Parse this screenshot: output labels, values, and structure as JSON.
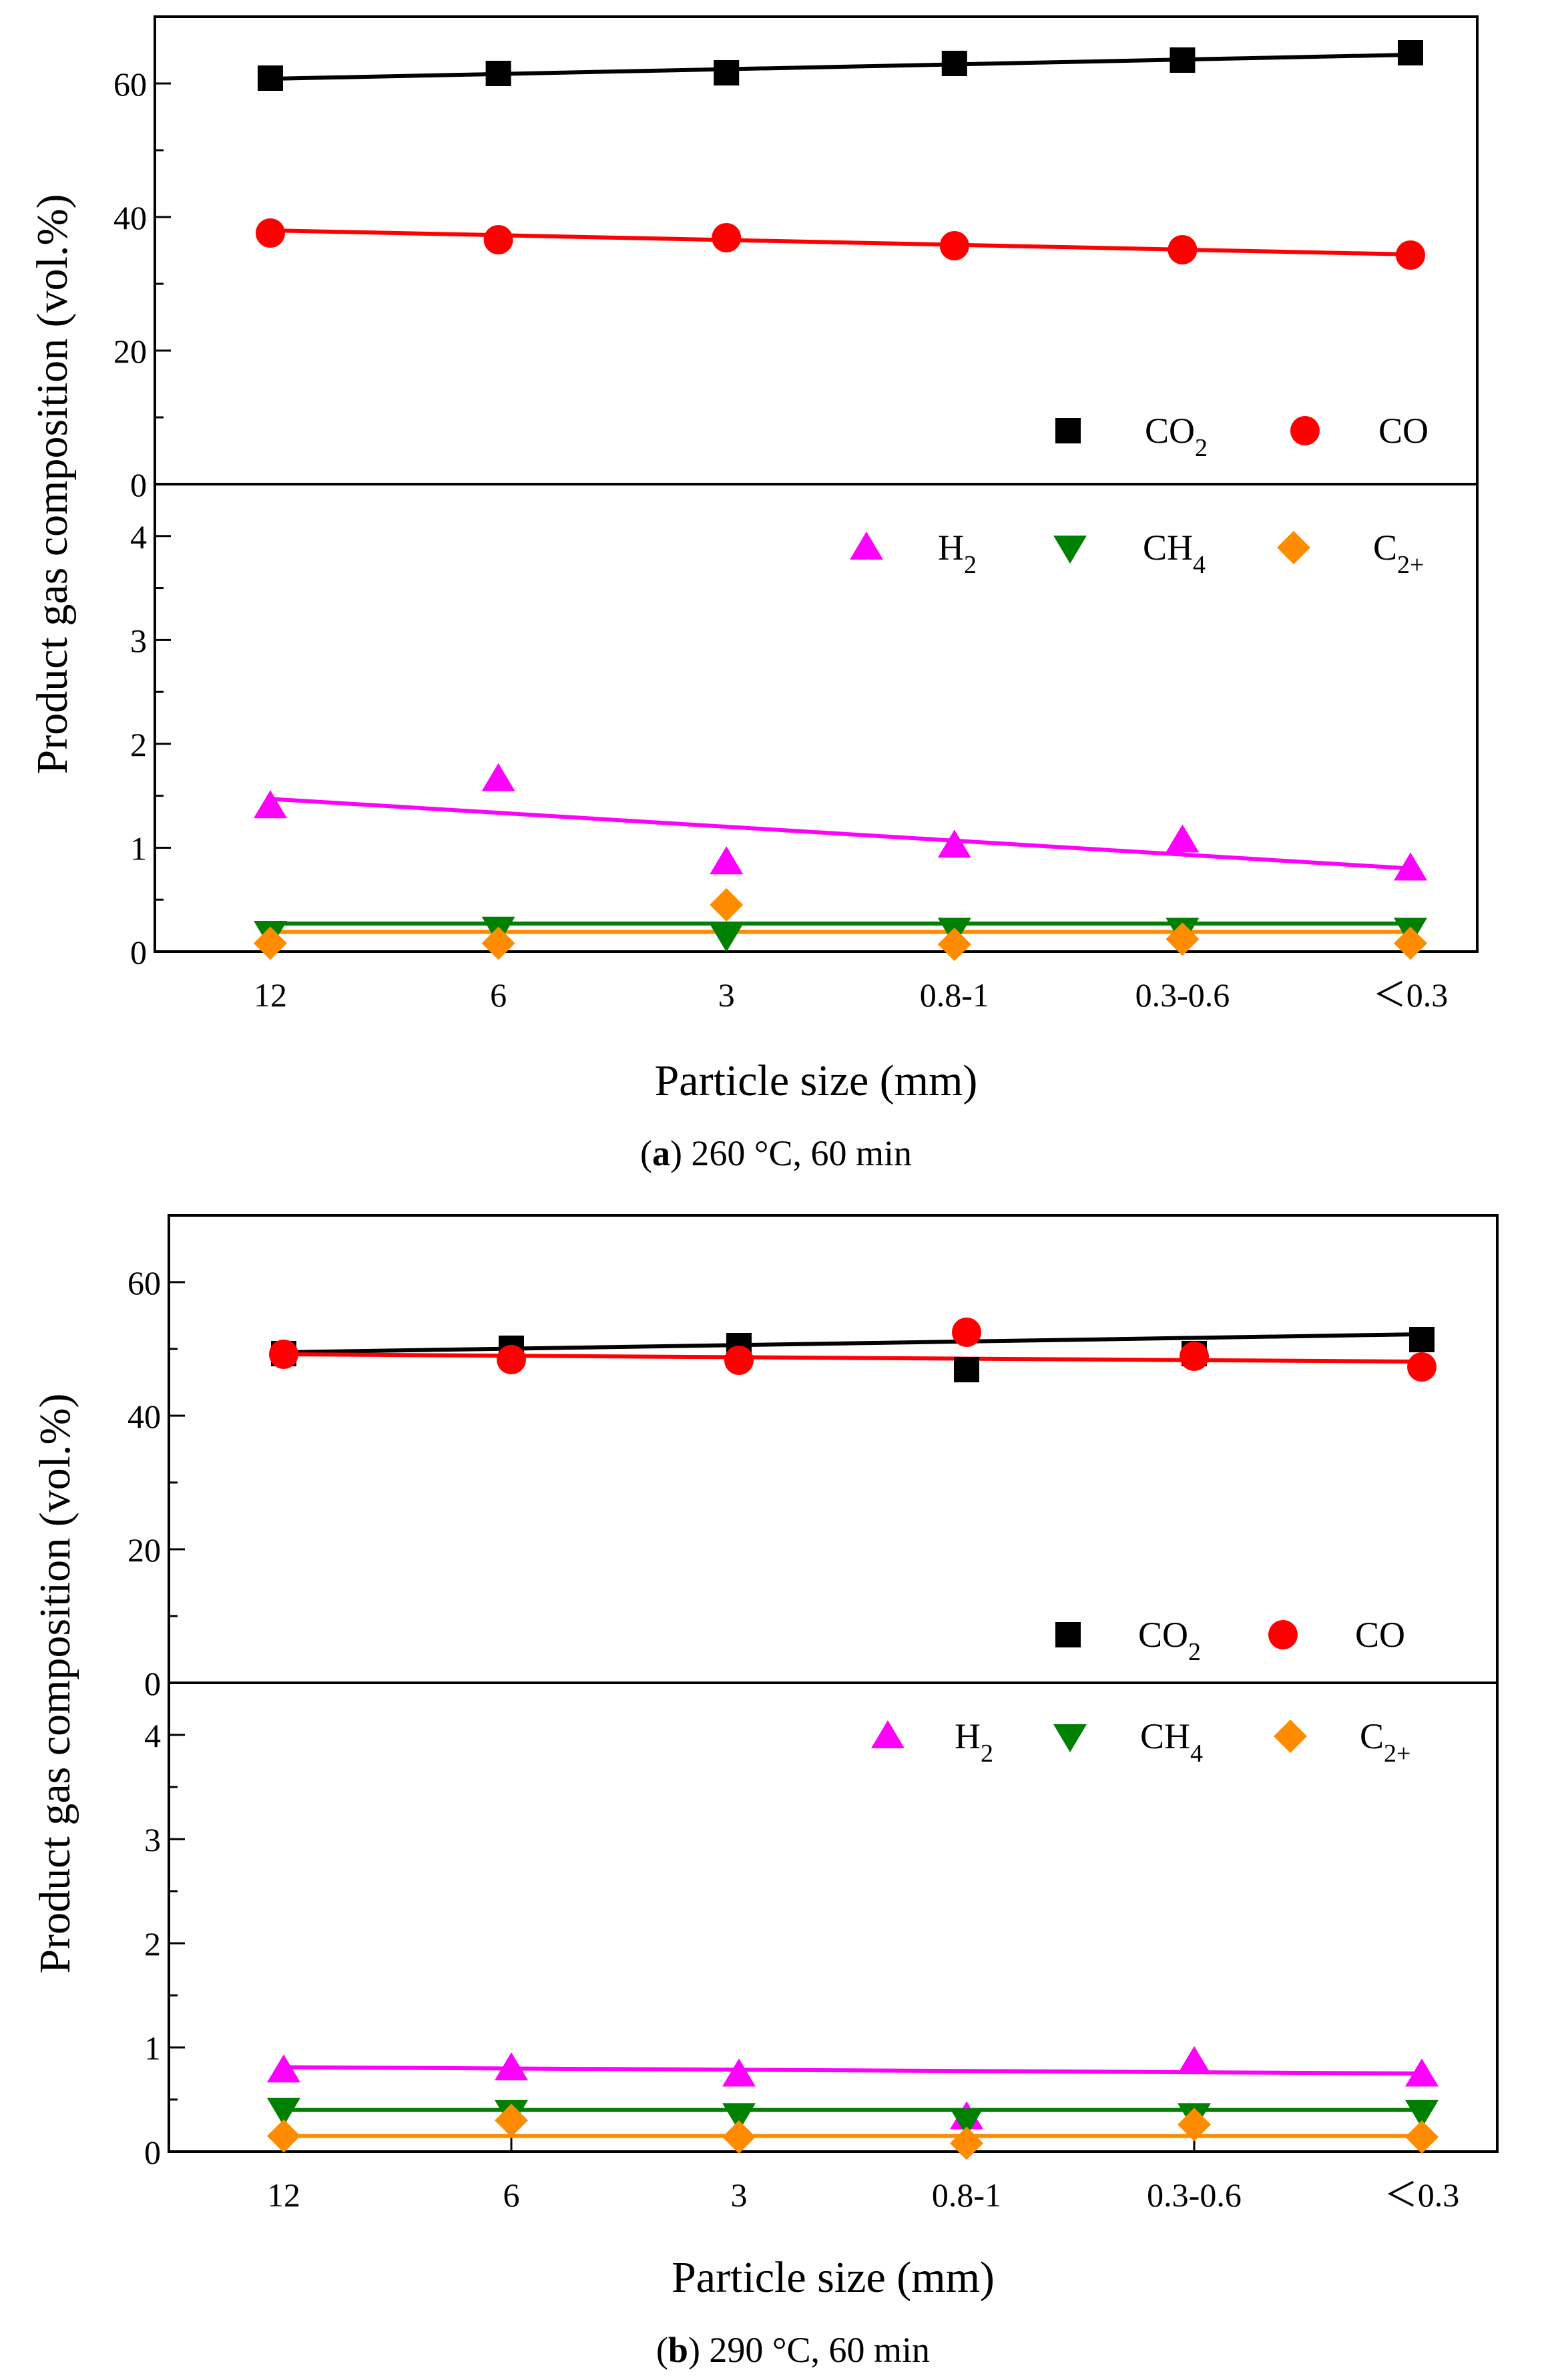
{
  "figure_caption_parts": [
    {
      "open": "(",
      "letter": "a",
      "rest": ") 260 °C, 60 min"
    },
    {
      "open": "(",
      "letter": "b",
      "rest": ") 290 °C, 60 min"
    }
  ],
  "chart_data": [
    {
      "type": "scatter",
      "panel": "a",
      "subtitle": "(a) 260 °C, 60 min",
      "xlabel": "Particle size (mm)",
      "ylabel": "Product gas composition (vol.%)",
      "categories": [
        "12",
        "6",
        "3",
        "0.8-1",
        "0.3-0.6",
        "＜0.3"
      ],
      "upper": {
        "ylim": [
          0,
          70
        ],
        "yticks": [
          "0",
          "20",
          "40",
          "60"
        ],
        "series": [
          {
            "name": "CO2",
            "label_base": "CO",
            "label_sub": "2",
            "marker": "square",
            "color": "#000000",
            "values": [
              60.8,
              61.5,
              61.6,
              63.0,
              63.5,
              64.6
            ],
            "fit": [
              60.7,
              64.3
            ]
          },
          {
            "name": "CO",
            "label_base": "CO",
            "label_sub": "",
            "marker": "circle",
            "color": "#ff0000",
            "values": [
              37.6,
              36.6,
              36.9,
              35.7,
              35.1,
              34.3
            ],
            "fit": [
              38.0,
              34.4
            ]
          }
        ]
      },
      "lower": {
        "ylim": [
          0,
          4.5
        ],
        "yticks": [
          "0",
          "1",
          "2",
          "3",
          "4"
        ],
        "series": [
          {
            "name": "H2",
            "label_base": "H",
            "label_sub": "2",
            "marker": "triangle-up",
            "color": "#ff00ff",
            "values": [
              1.4,
              1.66,
              0.86,
              1.02,
              1.07,
              0.8
            ],
            "fit": [
              1.47,
              0.8
            ]
          },
          {
            "name": "CH4",
            "label_base": "CH",
            "label_sub": "4",
            "marker": "triangle-down",
            "color": "#008000",
            "values": [
              0.18,
              0.22,
              0.15,
              0.21,
              0.21,
              0.21
            ],
            "fit": [
              0.27,
              0.27
            ]
          },
          {
            "name": "C2+",
            "label_base": "C",
            "label_sub": "2+",
            "marker": "diamond",
            "color": "#ff8c00",
            "values": [
              0.08,
              0.08,
              0.45,
              0.07,
              0.12,
              0.08
            ],
            "fit": [
              0.19,
              0.19
            ]
          }
        ]
      }
    },
    {
      "type": "scatter",
      "panel": "b",
      "subtitle": "(b) 290 °C, 60 min",
      "xlabel": "Particle size (mm)",
      "ylabel": "Product gas composition (vol.%)",
      "categories": [
        "12",
        "6",
        "3",
        "0.8-1",
        "0.3-0.6",
        "＜0.3"
      ],
      "upper": {
        "ylim": [
          0,
          70
        ],
        "yticks": [
          "0",
          "20",
          "40",
          "60"
        ],
        "series": [
          {
            "name": "CO2",
            "label_base": "CO",
            "label_sub": "2",
            "marker": "square",
            "color": "#000000",
            "values": [
              49.3,
              50.1,
              50.5,
              46.9,
              49.3,
              51.4
            ],
            "fit": [
              49.5,
              52.2
            ]
          },
          {
            "name": "CO",
            "label_base": "CO",
            "label_sub": "",
            "marker": "circle",
            "color": "#ff0000",
            "values": [
              49.2,
              48.4,
              48.3,
              52.5,
              48.9,
              47.3
            ],
            "fit": [
              49.2,
              48.1
            ]
          }
        ]
      },
      "lower": {
        "ylim": [
          0,
          4.5
        ],
        "yticks": [
          "0",
          "1",
          "2",
          "3",
          "4"
        ],
        "series": [
          {
            "name": "H2",
            "label_base": "H",
            "label_sub": "2",
            "marker": "triangle-up",
            "color": "#ff00ff",
            "values": [
              0.78,
              0.8,
              0.74,
              0.33,
              0.86,
              0.74
            ],
            "fit": [
              0.81,
              0.75
            ]
          },
          {
            "name": "CH4",
            "label_base": "CH",
            "label_sub": "4",
            "marker": "triangle-down",
            "color": "#008000",
            "values": [
              0.4,
              0.38,
              0.35,
              0.3,
              0.35,
              0.38
            ],
            "fit": [
              0.4,
              0.4
            ]
          },
          {
            "name": "C2+",
            "label_base": "C",
            "label_sub": "2+",
            "marker": "diamond",
            "color": "#ff8c00",
            "values": [
              0.15,
              0.3,
              0.14,
              0.08,
              0.26,
              0.14
            ],
            "fit": [
              0.15,
              0.15
            ]
          }
        ]
      }
    }
  ]
}
